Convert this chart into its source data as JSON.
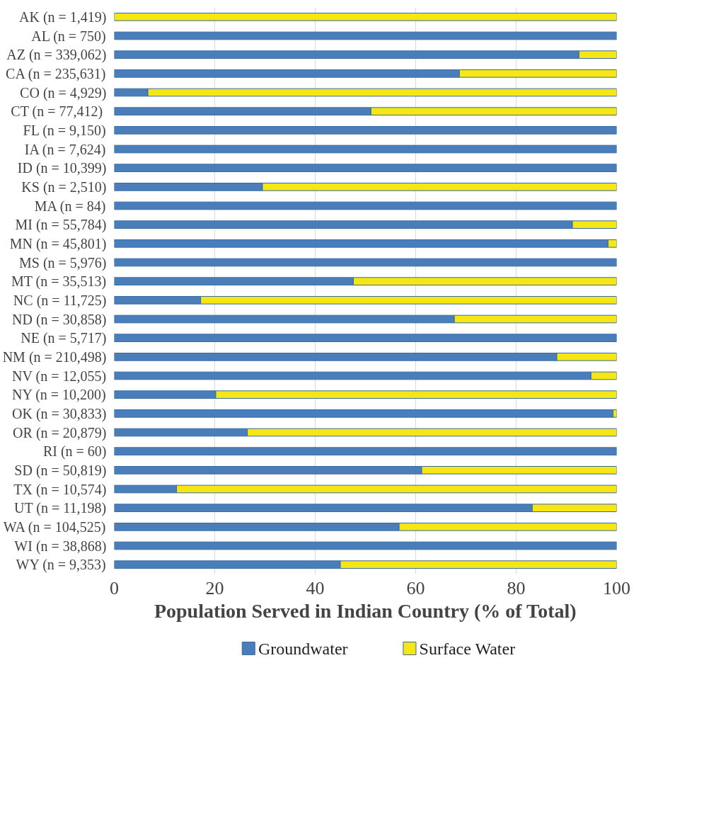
{
  "chart_data": {
    "type": "bar",
    "orientation": "horizontal",
    "stacked": true,
    "xlabel": "Population Served in Indian Country (% of Total)",
    "categories": [
      "AK (n = 1,419)",
      "AL (n = 750)",
      "AZ (n = 339,062)",
      "CA (n = 235,631)",
      "CO (n = 4,929)",
      "CT  (n = 77,412)",
      "FL (n = 9,150)",
      "IA (n = 7,624)",
      "ID (n = 10,399)",
      "KS (n = 2,510)",
      "MA (n = 84)",
      "MI (n = 55,784)",
      "MN (n = 45,801)",
      "MS (n = 5,976)",
      "MT (n = 35,513)",
      "NC (n = 11,725)",
      "ND (n = 30,858)",
      "NE (n = 5,717)",
      "NM (n = 210,498)",
      "NV (n = 12,055)",
      "NY (n = 10,200)",
      "OK (n = 30,833)",
      "OR (n = 20,879)",
      "RI (n = 60)",
      "SD (n = 50,819)",
      "TX (n = 10,574)",
      "UT (n = 11,198)",
      "WA (n = 104,525)",
      "WI (n = 38,868)",
      "WY (n = 9,353)"
    ],
    "series": [
      {
        "name": "Groundwater",
        "color": "#4a7ebb",
        "values": [
          0,
          100,
          92.5,
          68.7,
          6.7,
          51.1,
          100,
          100,
          100,
          29.5,
          100,
          91.2,
          98.3,
          100,
          47.6,
          17.2,
          67.7,
          100,
          88.1,
          94.9,
          20.2,
          99.3,
          26.5,
          100,
          61.2,
          12.4,
          83.2,
          56.7,
          100,
          45.0
        ]
      },
      {
        "name": "Surface Water",
        "color": "#f5e614",
        "values": [
          100,
          0,
          7.5,
          31.3,
          93.3,
          48.9,
          0,
          0,
          0,
          70.5,
          0,
          8.8,
          1.7,
          0,
          52.4,
          82.8,
          32.3,
          0,
          11.9,
          5.1,
          79.8,
          0.7,
          73.5,
          0,
          38.8,
          87.6,
          16.8,
          43.3,
          0,
          55.0
        ]
      }
    ],
    "xlim": [
      0,
      100
    ],
    "xticks": [
      0,
      20,
      40,
      60,
      80,
      100
    ],
    "grid": "x",
    "legend": "bottom"
  }
}
